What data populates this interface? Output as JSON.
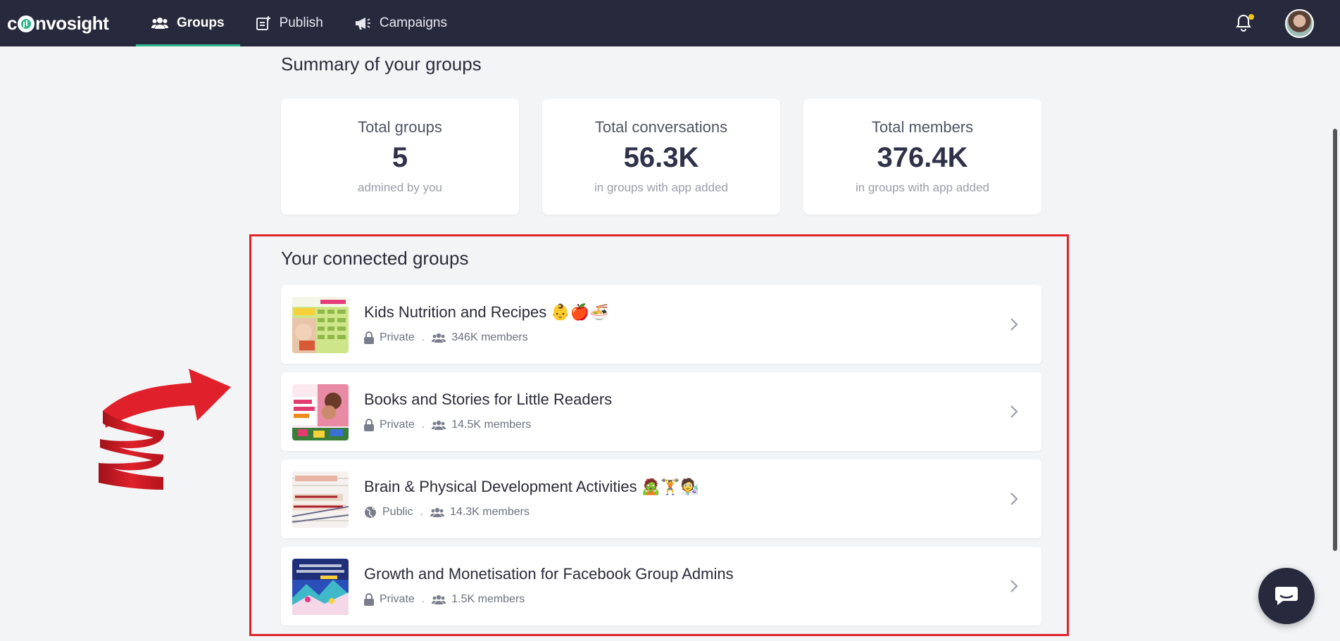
{
  "brand": {
    "logo_text_pre": "c",
    "logo_text_post": "nvosight"
  },
  "nav": {
    "items": [
      {
        "label": "Groups",
        "icon": "groups-icon",
        "active": true
      },
      {
        "label": "Publish",
        "icon": "publish-icon",
        "active": false
      },
      {
        "label": "Campaigns",
        "icon": "megaphone-icon",
        "active": false
      }
    ]
  },
  "summary": {
    "title": "Summary of your groups",
    "cards": [
      {
        "label": "Total groups",
        "value": "5",
        "sub": "admined by you"
      },
      {
        "label": "Total conversations",
        "value": "56.3K",
        "sub": "in groups with app added"
      },
      {
        "label": "Total members",
        "value": "376.4K",
        "sub": "in groups with app added"
      }
    ]
  },
  "connected": {
    "title": "Your connected groups",
    "groups": [
      {
        "name": "Kids Nutrition and Recipes 👶🍎🍜",
        "privacy": "Private",
        "privacy_icon": "lock-icon",
        "members": "346K members"
      },
      {
        "name": "Books and Stories for Little Readers",
        "privacy": "Private",
        "privacy_icon": "lock-icon",
        "members": "14.5K members"
      },
      {
        "name": "Brain & Physical Development Activities 🧟🏋🧑‍🔬",
        "privacy": "Public",
        "privacy_icon": "globe-icon",
        "members": "14.3K members"
      },
      {
        "name": "Growth and Monetisation for Facebook Group Admins",
        "privacy": "Private",
        "privacy_icon": "lock-icon",
        "members": "1.5K members"
      }
    ],
    "meta_separator": "."
  },
  "colors": {
    "topbar": "#272a3d",
    "accent": "#2fb88d",
    "highlight": "#e0212b",
    "notification_dot": "#f5c518"
  }
}
